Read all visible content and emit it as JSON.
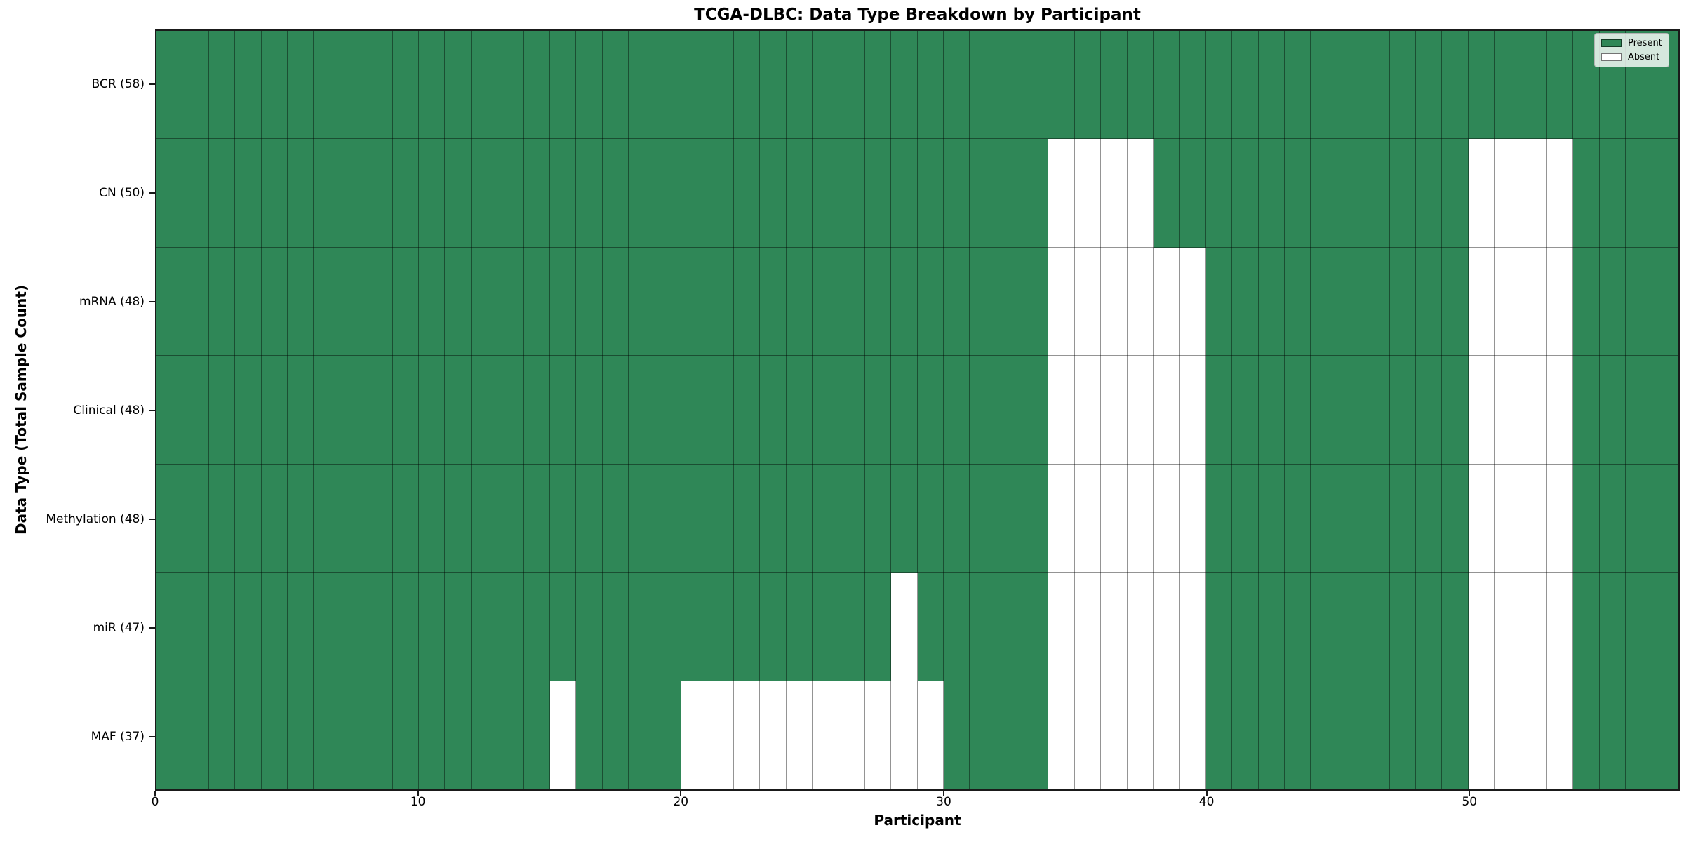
{
  "chart_data": {
    "type": "heatmap",
    "title": "TCGA-DLBC: Data Type Breakdown by Participant",
    "xlabel": "Participant",
    "ylabel": "Data Type (Total Sample Count)",
    "participants": 58,
    "x_range": [
      0,
      58
    ],
    "x_ticks": [
      0,
      10,
      20,
      30,
      40,
      50
    ],
    "grid": true,
    "legend_position": "upper right",
    "rows": [
      {
        "label": "BCR (58)",
        "data_type": "BCR",
        "present_count": 58,
        "absent_participants": []
      },
      {
        "label": "CN (50)",
        "data_type": "CN",
        "present_count": 50,
        "absent_participants": [
          34,
          35,
          36,
          37,
          50,
          51,
          52,
          53
        ]
      },
      {
        "label": "mRNA (48)",
        "data_type": "mRNA",
        "present_count": 48,
        "absent_participants": [
          34,
          35,
          36,
          37,
          38,
          39,
          50,
          51,
          52,
          53
        ]
      },
      {
        "label": "Clinical (48)",
        "data_type": "Clinical",
        "present_count": 48,
        "absent_participants": [
          34,
          35,
          36,
          37,
          38,
          39,
          50,
          51,
          52,
          53
        ]
      },
      {
        "label": "Methylation (48)",
        "data_type": "Methylation",
        "present_count": 48,
        "absent_participants": [
          34,
          35,
          36,
          37,
          38,
          39,
          50,
          51,
          52,
          53
        ]
      },
      {
        "label": "miR (47)",
        "data_type": "miR",
        "present_count": 47,
        "absent_participants": [
          28,
          34,
          35,
          36,
          37,
          38,
          39,
          50,
          51,
          52,
          53
        ]
      },
      {
        "label": "MAF (37)",
        "data_type": "MAF",
        "present_count": 37,
        "absent_participants": [
          15,
          20,
          21,
          22,
          23,
          24,
          25,
          26,
          27,
          28,
          29,
          34,
          35,
          36,
          37,
          38,
          39,
          50,
          51,
          52,
          53
        ]
      }
    ],
    "legend": [
      {
        "label": "Present",
        "color": "#2f8757"
      },
      {
        "label": "Absent",
        "color": "#ffffff"
      }
    ],
    "colors": {
      "present": "#2f8757",
      "absent": "#ffffff",
      "grid_line": "rgba(0,0,0,0.42)",
      "spine": "#1a1a1a",
      "legend_background": "rgba(255,255,255,0.8)"
    }
  }
}
